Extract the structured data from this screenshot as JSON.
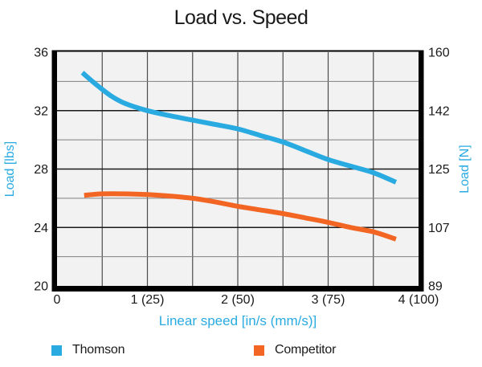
{
  "title": "Load vs. Speed",
  "chart_data": {
    "type": "line",
    "title": "Load vs. Speed",
    "xlabel": "Linear speed [in/s (mm/s)]",
    "ylabel_left": "Load [lbs]",
    "ylabel_right": "Load [N]",
    "xlim": [
      0,
      4
    ],
    "ylim": [
      20,
      36
    ],
    "x_grid_step": 0.5,
    "y_grid_step": 2,
    "grid": true,
    "legend_position": "bottom",
    "x_ticks": [
      {
        "v": 0,
        "label": "0"
      },
      {
        "v": 1,
        "label": "1 (25)"
      },
      {
        "v": 2,
        "label": "2 (50)"
      },
      {
        "v": 3,
        "label": "3 (75)"
      },
      {
        "v": 4,
        "label": "4 (100)"
      }
    ],
    "y_ticks_left": [
      {
        "v": 20,
        "label": "20"
      },
      {
        "v": 24,
        "label": "24"
      },
      {
        "v": 28,
        "label": "28"
      },
      {
        "v": 32,
        "label": "32"
      },
      {
        "v": 36,
        "label": "36"
      }
    ],
    "y_ticks_right": [
      {
        "v": 20,
        "label": "89"
      },
      {
        "v": 24,
        "label": "107"
      },
      {
        "v": 28,
        "label": "125"
      },
      {
        "v": 32,
        "label": "142"
      },
      {
        "v": 36,
        "label": "160"
      }
    ],
    "series": [
      {
        "name": "Thomson",
        "color": "#29abe2",
        "x": [
          0.28,
          0.45,
          0.6,
          0.75,
          1.0,
          1.25,
          1.5,
          1.75,
          2.0,
          2.25,
          2.5,
          2.75,
          3.0,
          3.25,
          3.5,
          3.75
        ],
        "y": [
          34.6,
          33.7,
          33.0,
          32.5,
          32.0,
          31.65,
          31.35,
          31.05,
          30.75,
          30.3,
          29.85,
          29.25,
          28.65,
          28.2,
          27.75,
          27.1
        ]
      },
      {
        "name": "Competitor",
        "color": "#f26522",
        "x": [
          0.3,
          0.5,
          0.75,
          1.0,
          1.25,
          1.5,
          1.75,
          2.0,
          2.25,
          2.5,
          2.75,
          3.0,
          3.25,
          3.5,
          3.75
        ],
        "y": [
          26.2,
          26.3,
          26.3,
          26.25,
          26.15,
          26.0,
          25.75,
          25.45,
          25.2,
          24.95,
          24.65,
          24.35,
          24.0,
          23.7,
          23.2
        ]
      }
    ]
  },
  "colors": {
    "axis_label": "#29abe2",
    "plot_bg": "#f2f2f2",
    "grid_minor": "#808080",
    "grid_major": "#1a1a1a",
    "frame": "#000000",
    "tick_text": "#1a1a1a"
  }
}
